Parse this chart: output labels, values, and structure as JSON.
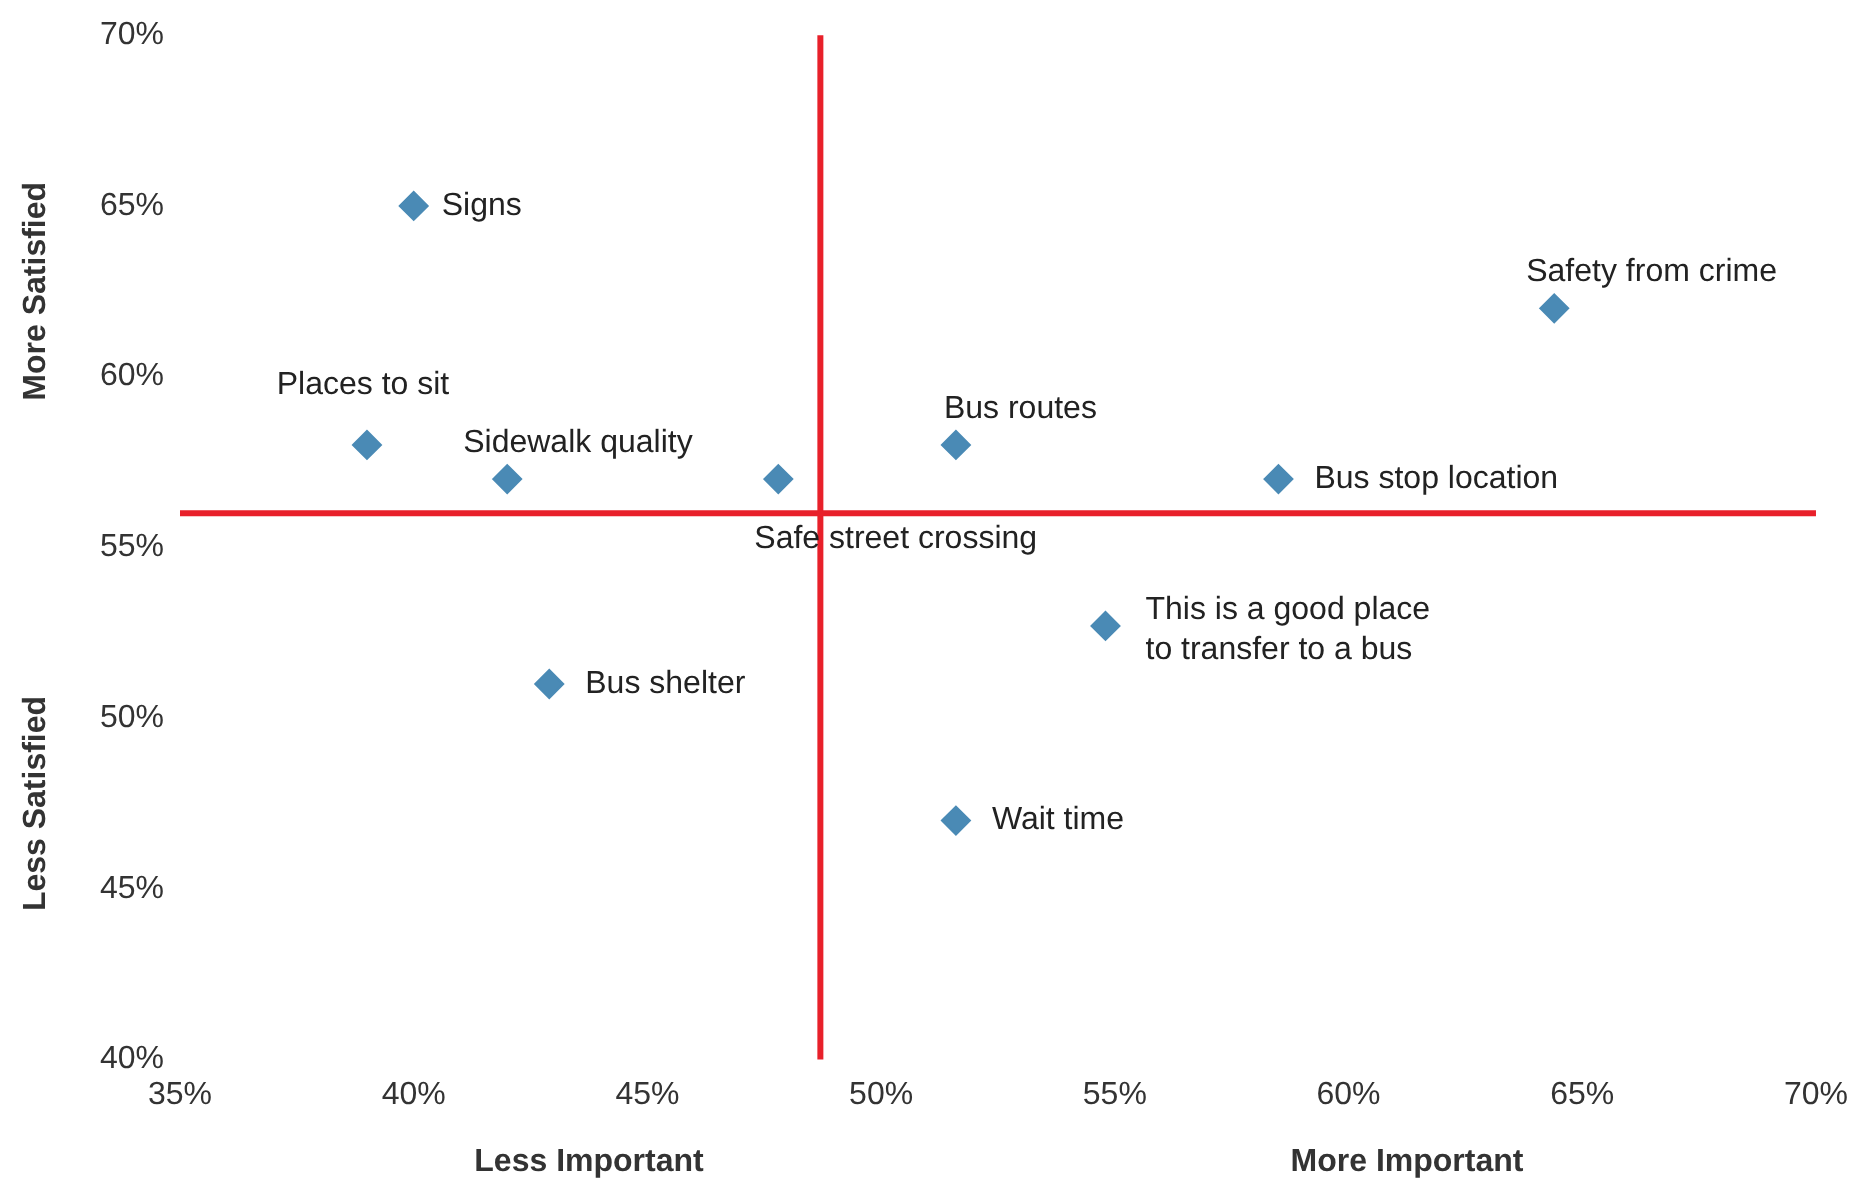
{
  "chart_data": {
    "type": "scatter",
    "marker": "diamond",
    "grid": false,
    "legend": false,
    "series": [
      {
        "name": "Signs",
        "color": "#4a8ab5",
        "x": [
          40
        ],
        "values": [
          65
        ]
      },
      {
        "name": "Places to sit",
        "color": "#4a8ab5",
        "x": [
          39
        ],
        "values": [
          58
        ]
      },
      {
        "name": "Sidewalk quality",
        "color": "#4a8ab5",
        "x": [
          42
        ],
        "values": [
          57
        ]
      },
      {
        "name": "Safe street crossing",
        "color": "#4a8ab5",
        "x": [
          47.8
        ],
        "values": [
          57
        ]
      },
      {
        "name": "Bus routes",
        "color": "#4a8ab5",
        "x": [
          51.6
        ],
        "values": [
          58
        ]
      },
      {
        "name": "Bus stop location",
        "color": "#4a8ab5",
        "x": [
          58.5
        ],
        "values": [
          57
        ]
      },
      {
        "name": "Safety from crime",
        "color": "#4a8ab5",
        "x": [
          64.4
        ],
        "values": [
          62
        ]
      },
      {
        "name": "This is a good place to transfer to a bus",
        "color": "#4a8ab5",
        "x": [
          54.8
        ],
        "values": [
          52.7
        ]
      },
      {
        "name": "Bus shelter",
        "color": "#4a8ab5",
        "x": [
          42.9
        ],
        "values": [
          51
        ]
      },
      {
        "name": "Wait time",
        "color": "#4a8ab5",
        "x": [
          51.6
        ],
        "values": [
          47
        ]
      }
    ],
    "xlim": [
      35,
      70
    ],
    "xticks": [
      {
        "value": 35,
        "label": "35%"
      },
      {
        "value": 40,
        "label": "40%"
      },
      {
        "value": 45,
        "label": "45%"
      },
      {
        "value": 50,
        "label": "50%"
      },
      {
        "value": 55,
        "label": "55%"
      },
      {
        "value": 60,
        "label": "60%"
      },
      {
        "value": 65,
        "label": "65%"
      },
      {
        "value": 70,
        "label": "70%"
      }
    ],
    "ylim": [
      40,
      70
    ],
    "yticks": [
      {
        "value": 40,
        "label": "40%"
      },
      {
        "value": 45,
        "label": "45%"
      },
      {
        "value": 50,
        "label": "50%"
      },
      {
        "value": 55,
        "label": "55%"
      },
      {
        "value": 60,
        "label": "60%"
      },
      {
        "value": 65,
        "label": "65%"
      },
      {
        "value": 70,
        "label": "70%"
      }
    ],
    "ref_lines": [
      {
        "axis": "x",
        "value": 48.7,
        "color": "#e8202a"
      },
      {
        "axis": "y",
        "value": 56,
        "color": "#e8202a"
      }
    ],
    "annotations": [
      "Less Important",
      "More Important",
      "More Satisfied",
      "Less Satisfied"
    ]
  }
}
